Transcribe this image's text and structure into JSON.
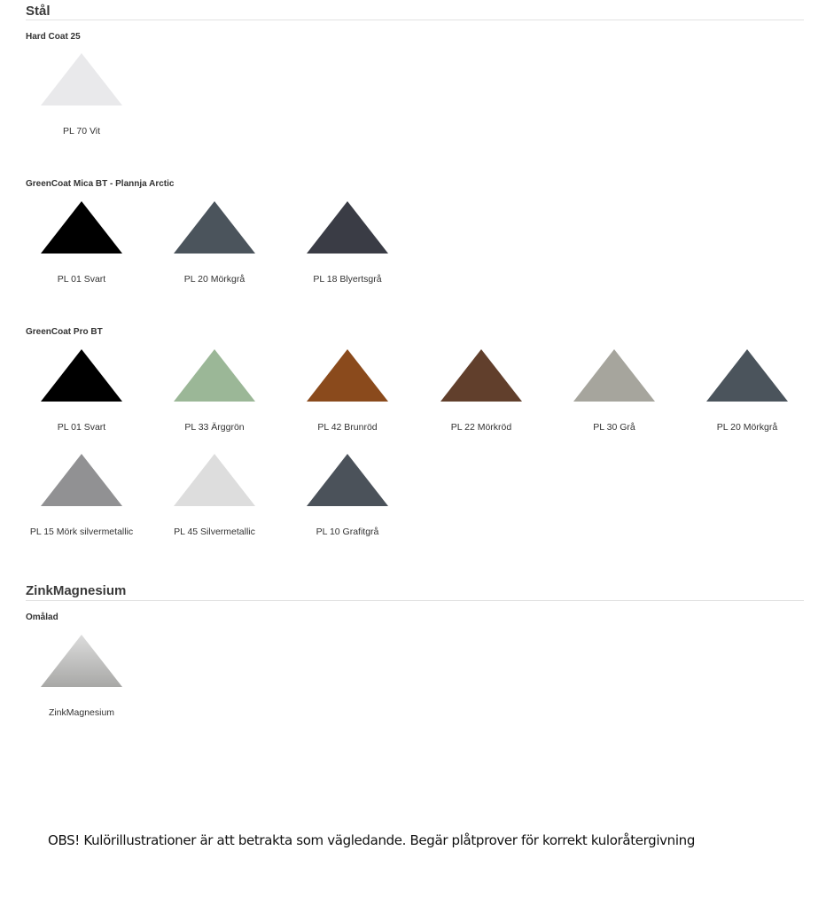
{
  "sections": [
    {
      "title": "Stål",
      "groups": [
        {
          "title": "Hard Coat 25",
          "swatches": [
            {
              "label": "PL 70 Vit",
              "color": "#e9e9eb"
            }
          ]
        },
        {
          "title": "GreenCoat Mica BT - Plannja Arctic",
          "swatches": [
            {
              "label": "PL 01 Svart",
              "color": "#000000"
            },
            {
              "label": "PL 20 Mörkgrå",
              "color": "#4b545c"
            },
            {
              "label": "PL 18 Blyertsgrå",
              "color": "#3a3c45"
            }
          ]
        },
        {
          "title": "GreenCoat Pro BT",
          "swatches": [
            {
              "label": "PL 01 Svart",
              "color": "#000000"
            },
            {
              "label": "PL 33 Ärggrön",
              "color": "#9bb797"
            },
            {
              "label": "PL 42 Brunröd",
              "color": "#8a4a1c"
            },
            {
              "label": "PL 22 Mörkröd",
              "color": "#613f2c"
            },
            {
              "label": "PL 30 Grå",
              "color": "#a6a59d"
            },
            {
              "label": "PL 20 Mörkgrå",
              "color": "#4b545c"
            },
            {
              "label": "PL 15 Mörk silvermetallic",
              "color": "#919193"
            },
            {
              "label": "PL 45 Silvermetallic",
              "color": "#dddddd"
            },
            {
              "label": "PL 10 Grafitgrå",
              "color": "#4b525a"
            }
          ]
        }
      ]
    },
    {
      "title": "ZinkMagnesium",
      "groups": [
        {
          "title": "Omålad",
          "swatches": [
            {
              "label": "ZinkMagnesium",
              "color": "#b9b9b7",
              "gradient_top": "#dcdcdc",
              "gradient_bottom": "#a8a8a6"
            }
          ]
        }
      ]
    }
  ],
  "note": "OBS! Kulörillustrationer är att betrakta som vägledande. Begär plåtprover för korrekt kuloråtergivning"
}
